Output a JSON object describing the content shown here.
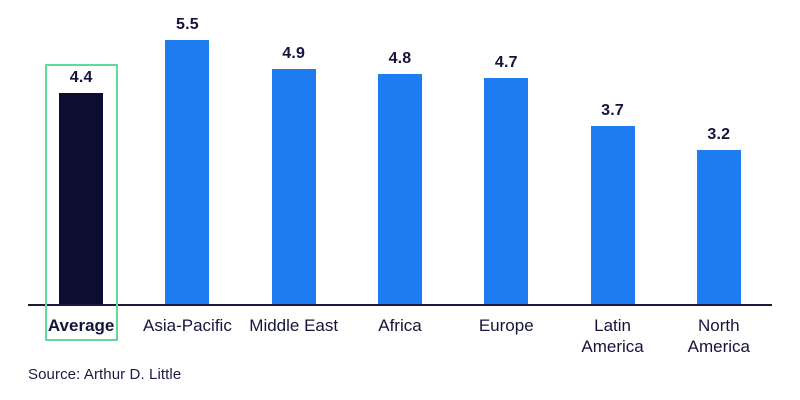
{
  "chart_data": {
    "type": "bar",
    "categories": [
      "Average",
      "Asia-Pacific",
      "Middle East",
      "Africa",
      "Europe",
      "Latin\nAmerica",
      "North\nAmerica"
    ],
    "values": [
      4.4,
      5.5,
      4.9,
      4.8,
      4.7,
      3.7,
      3.2
    ],
    "title": "",
    "xlabel": "",
    "ylabel": "",
    "ylim": [
      0,
      6
    ],
    "grid": false,
    "legend": "none",
    "highlight_index": 0,
    "highlight_note": "Average bar is dark navy and enclosed in a green outline box",
    "colors": {
      "bar_default": "#1e7bf0",
      "bar_highlight": "#0d0d32",
      "highlight_box_border": "#62d998",
      "value_text": "#14143c",
      "axis_line": "#1a1a3e"
    }
  },
  "footer": {
    "source": "Source: Arthur D. Little"
  }
}
